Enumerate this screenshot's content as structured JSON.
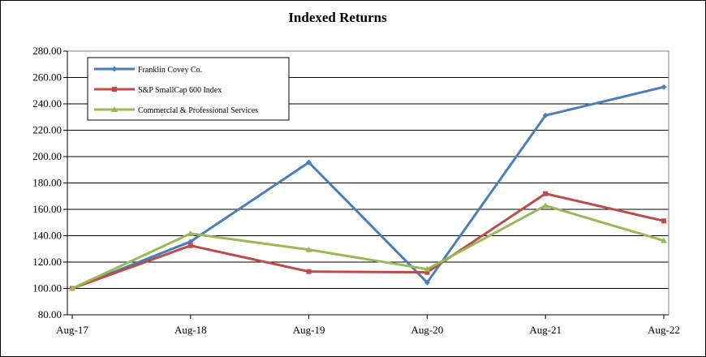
{
  "chart_data": {
    "type": "line",
    "title": "Indexed Returns",
    "categories": [
      "Aug-17",
      "Aug-18",
      "Aug-19",
      "Aug-20",
      "Aug-21",
      "Aug-22"
    ],
    "ylim": [
      80,
      280
    ],
    "yticks": [
      "80.00",
      "100.00",
      "120.00",
      "140.00",
      "160.00",
      "180.00",
      "200.00",
      "220.00",
      "240.00",
      "260.00",
      "280.00"
    ],
    "grid": true,
    "legend_position": "top-left",
    "series": [
      {
        "name": "Franklin Covey Co.",
        "color": "#4a7ebb",
        "marker": "diamond",
        "values": [
          100.0,
          135.5,
          195.6,
          104.5,
          231.2,
          252.8
        ]
      },
      {
        "name": "S&P SmallCap 600 Index",
        "color": "#be4b48",
        "marker": "square",
        "values": [
          100.0,
          132.5,
          112.8,
          112.2,
          171.9,
          151.2
        ]
      },
      {
        "name": "Commercial & Professional Services",
        "color": "#98b954",
        "marker": "triangle",
        "values": [
          100.0,
          141.6,
          129.4,
          114.6,
          162.8,
          136.3
        ]
      }
    ]
  }
}
